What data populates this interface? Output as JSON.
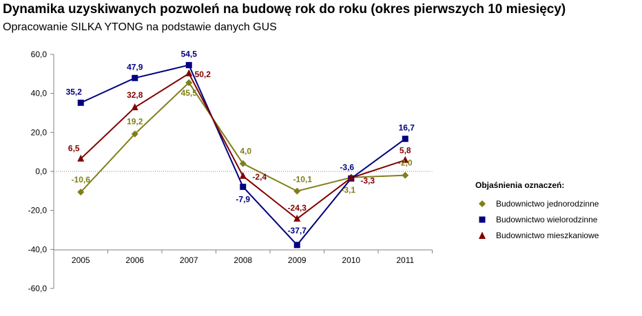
{
  "title": "Dynamika uzyskiwanych pozwoleń na budowę rok do roku (okres pierwszych 10 miesięcy)",
  "subtitle": "Opracowanie SILKA YTONG na podstawie danych GUS",
  "legend_title": "Objaśnienia oznaczeń:",
  "chart_data": {
    "type": "line",
    "categories": [
      "2005",
      "2006",
      "2007",
      "2008",
      "2009",
      "2010",
      "2011"
    ],
    "ylim": [
      -60,
      60
    ],
    "yticks": [
      "60,0",
      "40,0",
      "20,0",
      "0,0",
      "-20,0",
      "-40,0",
      "-60,0"
    ],
    "ytick_values": [
      60,
      40,
      20,
      0,
      -20,
      -40,
      -60
    ],
    "zero_line": "dotted",
    "grid": false,
    "legend_position": "right",
    "series": [
      {
        "name": "Budownictwo jednorodzinne",
        "color": "#7f7f1a",
        "marker": "diamond",
        "values": [
          -10.6,
          19.2,
          45.5,
          4.0,
          -10.1,
          -3.1,
          -2.0
        ],
        "labels": [
          "-10,6",
          "19,2",
          "45,5",
          "4,0",
          "-10,1",
          "-3,1",
          "-2,0"
        ]
      },
      {
        "name": "Budownictwo wielorodzinne",
        "color": "#000080",
        "marker": "square",
        "values": [
          35.2,
          47.9,
          54.5,
          -7.9,
          -37.7,
          -3.6,
          16.7
        ],
        "labels": [
          "35,2",
          "47,9",
          "54,5",
          "-7,9",
          "-37,7",
          "-3,6",
          "16,7"
        ]
      },
      {
        "name": "Budownictwo mieszkaniowe",
        "color": "#800000",
        "marker": "triangle",
        "values": [
          6.5,
          32.8,
          50.2,
          -2.4,
          -24.3,
          -3.3,
          5.8
        ],
        "labels": [
          "6,5",
          "32,8",
          "50,2",
          "-2,4",
          "-24,3",
          "-3,3",
          "5,8"
        ]
      }
    ]
  }
}
